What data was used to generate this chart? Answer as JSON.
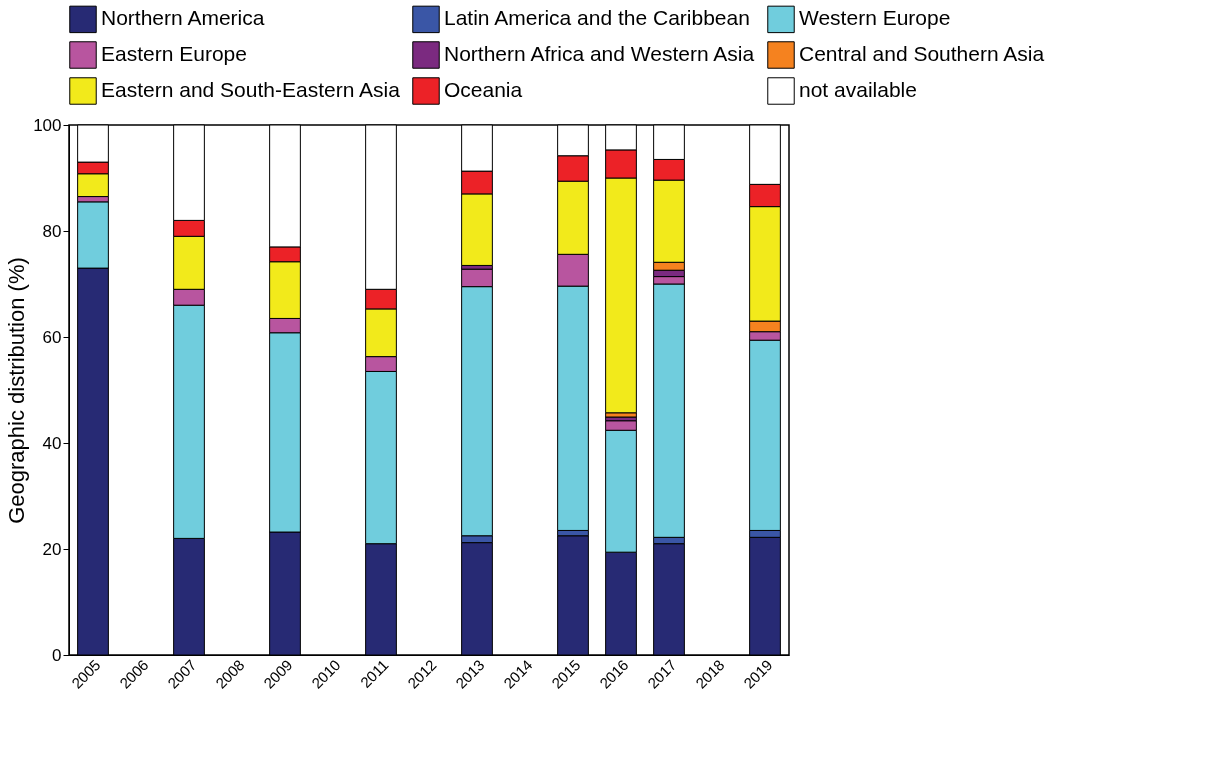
{
  "chart_data": {
    "type": "bar",
    "stacked": true,
    "ylabel": "Geographic distribution (%)",
    "categories": [
      "2005",
      "2006",
      "2007",
      "2008",
      "2009",
      "2010",
      "2011",
      "2012",
      "2013",
      "2014",
      "2015",
      "2016",
      "2017",
      "2018",
      "2019"
    ],
    "ylim": [
      0,
      100
    ],
    "yticks": [
      0,
      20,
      40,
      60,
      80,
      100
    ],
    "grid": false,
    "legend": "top",
    "series": [
      {
        "name": "Northern America",
        "color": "#272a74",
        "values": [
          73,
          null,
          22,
          null,
          23.2,
          null,
          21,
          null,
          21.2,
          null,
          22.5,
          19.4,
          21,
          null,
          22.2
        ]
      },
      {
        "name": "Latin America and the Caribbean",
        "color": "#3a56a6",
        "values": [
          null,
          null,
          null,
          null,
          null,
          null,
          null,
          null,
          1.3,
          null,
          1,
          null,
          1.2,
          null,
          1.3
        ]
      },
      {
        "name": "Western Europe",
        "color": "#70cddd",
        "values": [
          12.5,
          null,
          44,
          null,
          37.6,
          null,
          32.5,
          null,
          47,
          null,
          46.1,
          23,
          47.8,
          null,
          35.9
        ]
      },
      {
        "name": "Eastern Europe",
        "color": "#b8559f",
        "values": [
          1,
          null,
          3,
          null,
          2.7,
          null,
          2.8,
          null,
          3.3,
          null,
          6,
          1.8,
          1.4,
          null,
          1.6
        ]
      },
      {
        "name": "Northern Africa and Western Asia",
        "color": "#7b2a80",
        "values": [
          null,
          null,
          null,
          null,
          null,
          null,
          null,
          null,
          0.7,
          null,
          null,
          0.7,
          1.2,
          null,
          null
        ]
      },
      {
        "name": "Central and Southern Asia",
        "color": "#f5821f",
        "values": [
          null,
          null,
          null,
          null,
          null,
          null,
          null,
          null,
          null,
          null,
          null,
          0.8,
          1.5,
          null,
          2
        ]
      },
      {
        "name": "Eastern and South-Eastern Asia",
        "color": "#f2ea1b",
        "values": [
          4.3,
          null,
          10,
          null,
          10.7,
          null,
          9,
          null,
          13.5,
          null,
          13.8,
          44.3,
          15.5,
          null,
          21.6
        ]
      },
      {
        "name": "Oceania",
        "color": "#ec2227",
        "values": [
          2.2,
          null,
          3,
          null,
          2.8,
          null,
          3.7,
          null,
          4.3,
          null,
          4.8,
          5.3,
          3.9,
          null,
          4.2
        ]
      },
      {
        "name": "not available",
        "color": "#ffffff",
        "values": [
          7,
          null,
          18,
          null,
          23,
          null,
          31,
          null,
          8.7,
          null,
          5.8,
          4.7,
          6.5,
          null,
          11.2
        ]
      }
    ]
  }
}
